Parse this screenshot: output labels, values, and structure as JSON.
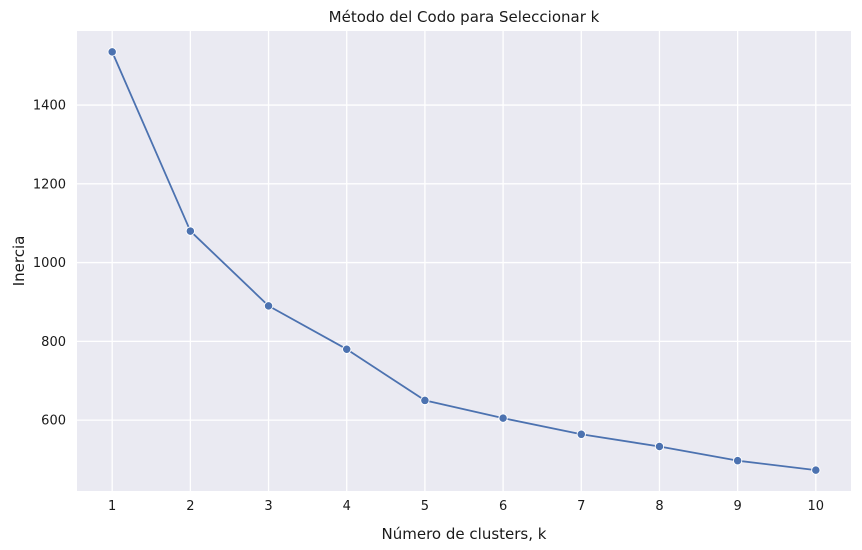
{
  "chart_data": {
    "type": "line",
    "title": "Método del Codo para Seleccionar k",
    "xlabel": "Número de clusters, k",
    "ylabel": "Inercia",
    "x": [
      1,
      2,
      3,
      4,
      5,
      6,
      7,
      8,
      9,
      10
    ],
    "series": [
      {
        "values": [
          1535,
          1080,
          890,
          780,
          650,
          605,
          564,
          533,
          497,
          473
        ],
        "color": "#4c72b0",
        "marker": "circle"
      }
    ],
    "xticks": [
      "1",
      "2",
      "3",
      "4",
      "5",
      "6",
      "7",
      "8",
      "9",
      "10"
    ],
    "yticks": [
      600,
      800,
      1000,
      1200,
      1400
    ],
    "xlim": [
      0.55,
      10.45
    ],
    "ylim": [
      420,
      1588
    ],
    "grid": true,
    "background": "#eaeaf2",
    "grid_color": "#ffffff"
  }
}
